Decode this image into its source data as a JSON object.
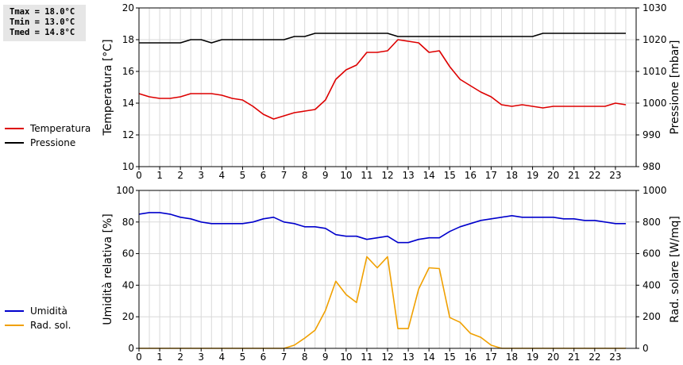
{
  "stats": {
    "tmax": "Tmax = 18.0°C",
    "tmin": "Tmin = 13.0°C",
    "tmed": "Tmed = 14.8°C"
  },
  "chart_data": [
    {
      "type": "line",
      "ylabel_left": "Temperatura [°C]",
      "ylabel_right": "Pressione [mbar]",
      "xlim": [
        0,
        24
      ],
      "ylim_left": [
        10,
        20
      ],
      "ylim_right": [
        980,
        1030
      ],
      "x_ticks": [
        "0",
        "1",
        "2",
        "3",
        "4",
        "5",
        "6",
        "7",
        "8",
        "9",
        "10",
        "11",
        "12",
        "13",
        "14",
        "15",
        "16",
        "17",
        "18",
        "19",
        "20",
        "21",
        "22",
        "23"
      ],
      "y_ticks_left": [
        "10",
        "12",
        "14",
        "16",
        "18",
        "20"
      ],
      "y_ticks_right": [
        "980",
        "990",
        "1000",
        "1010",
        "1020",
        "1030"
      ],
      "grid": true,
      "legend_placement": "left",
      "series": [
        {
          "name": "Temperatura",
          "color": "#dd0000",
          "axis": "left",
          "x": [
            0,
            0.5,
            1,
            1.5,
            2,
            2.5,
            3,
            3.5,
            4,
            4.5,
            5,
            5.5,
            6,
            6.5,
            7,
            7.5,
            8,
            8.5,
            9,
            9.5,
            10,
            10.5,
            11,
            11.5,
            12,
            12.5,
            13,
            13.5,
            14,
            14.5,
            15,
            15.5,
            16,
            16.5,
            17,
            17.5,
            18,
            18.5,
            19,
            19.5,
            20,
            20.5,
            21,
            21.5,
            22,
            22.5,
            23,
            23.5
          ],
          "values": [
            14.6,
            14.4,
            14.3,
            14.3,
            14.4,
            14.6,
            14.6,
            14.6,
            14.5,
            14.3,
            14.2,
            13.8,
            13.3,
            13.0,
            13.2,
            13.4,
            13.5,
            13.6,
            14.2,
            15.5,
            16.1,
            16.4,
            17.2,
            17.2,
            17.3,
            18.0,
            17.9,
            17.8,
            17.2,
            17.3,
            16.3,
            15.5,
            15.1,
            14.7,
            14.4,
            13.9,
            13.8,
            13.9,
            13.8,
            13.7,
            13.8,
            13.8,
            13.8,
            13.8,
            13.8,
            13.8,
            14.0,
            13.9
          ]
        },
        {
          "name": "Pressione",
          "color": "#000000",
          "axis": "right",
          "x": [
            0,
            0.5,
            1,
            1.5,
            2,
            2.5,
            3,
            3.5,
            4,
            4.5,
            5,
            5.5,
            6,
            6.5,
            7,
            7.5,
            8,
            8.5,
            9,
            9.5,
            10,
            10.5,
            11,
            11.5,
            12,
            12.5,
            13,
            13.5,
            14,
            14.5,
            15,
            15.5,
            16,
            16.5,
            17,
            17.5,
            18,
            18.5,
            19,
            19.5,
            20,
            20.5,
            21,
            21.5,
            22,
            22.5,
            23,
            23.5
          ],
          "values": [
            1019,
            1019,
            1019,
            1019,
            1019,
            1020,
            1020,
            1019,
            1020,
            1020,
            1020,
            1020,
            1020,
            1020,
            1020,
            1021,
            1021,
            1022,
            1022,
            1022,
            1022,
            1022,
            1022,
            1022,
            1022,
            1021,
            1021,
            1021,
            1021,
            1021,
            1021,
            1021,
            1021,
            1021,
            1021,
            1021,
            1021,
            1021,
            1021,
            1022,
            1022,
            1022,
            1022,
            1022,
            1022,
            1022,
            1022,
            1022
          ]
        }
      ]
    },
    {
      "type": "line",
      "ylabel_left": "Umidità relativa [%]",
      "ylabel_right": "Rad. solare [W/mq]",
      "xlim": [
        0,
        24
      ],
      "ylim_left": [
        0,
        100
      ],
      "ylim_right": [
        0,
        1000
      ],
      "x_ticks": [
        "0",
        "1",
        "2",
        "3",
        "4",
        "5",
        "6",
        "7",
        "8",
        "9",
        "10",
        "11",
        "12",
        "13",
        "14",
        "15",
        "16",
        "17",
        "18",
        "19",
        "20",
        "21",
        "22",
        "23"
      ],
      "y_ticks_left": [
        "0",
        "20",
        "40",
        "60",
        "80",
        "100"
      ],
      "y_ticks_right": [
        "0",
        "200",
        "400",
        "600",
        "800",
        "1000"
      ],
      "grid": true,
      "legend_placement": "left",
      "series": [
        {
          "name": "Umidità",
          "color": "#0000cc",
          "axis": "left",
          "x": [
            0,
            0.5,
            1,
            1.5,
            2,
            2.5,
            3,
            3.5,
            4,
            4.5,
            5,
            5.5,
            6,
            6.5,
            7,
            7.5,
            8,
            8.5,
            9,
            9.5,
            10,
            10.5,
            11,
            11.5,
            12,
            12.5,
            13,
            13.5,
            14,
            14.5,
            15,
            15.5,
            16,
            16.5,
            17,
            17.5,
            18,
            18.5,
            19,
            19.5,
            20,
            20.5,
            21,
            21.5,
            22,
            22.5,
            23,
            23.5
          ],
          "values": [
            85,
            86,
            86,
            85,
            83,
            82,
            80,
            79,
            79,
            79,
            79,
            80,
            82,
            83,
            80,
            79,
            77,
            77,
            76,
            72,
            71,
            71,
            69,
            70,
            71,
            67,
            67,
            69,
            70,
            70,
            74,
            77,
            79,
            81,
            82,
            83,
            84,
            83,
            83,
            83,
            83,
            82,
            82,
            81,
            81,
            80,
            79,
            79
          ]
        },
        {
          "name": "Rad. sol.",
          "color": "#f0a000",
          "axis": "right",
          "x": [
            0,
            0.5,
            1,
            1.5,
            2,
            2.5,
            3,
            3.5,
            4,
            4.5,
            5,
            5.5,
            6,
            6.5,
            7,
            7.5,
            8,
            8.5,
            9,
            9.5,
            10,
            10.5,
            11,
            11.5,
            12,
            12.5,
            13,
            13.5,
            14,
            14.5,
            15,
            15.5,
            16,
            16.5,
            17,
            17.5,
            18,
            18.5,
            19,
            19.5,
            20,
            20.5,
            21,
            21.5,
            22,
            22.5,
            23,
            23.5
          ],
          "values": [
            0,
            0,
            0,
            0,
            0,
            0,
            0,
            0,
            0,
            0,
            0,
            0,
            0,
            0,
            0,
            20,
            65,
            115,
            240,
            425,
            340,
            290,
            580,
            510,
            580,
            125,
            125,
            375,
            510,
            505,
            195,
            165,
            95,
            70,
            20,
            0,
            0,
            0,
            0,
            0,
            0,
            0,
            0,
            0,
            0,
            0,
            0,
            0
          ]
        }
      ]
    }
  ]
}
